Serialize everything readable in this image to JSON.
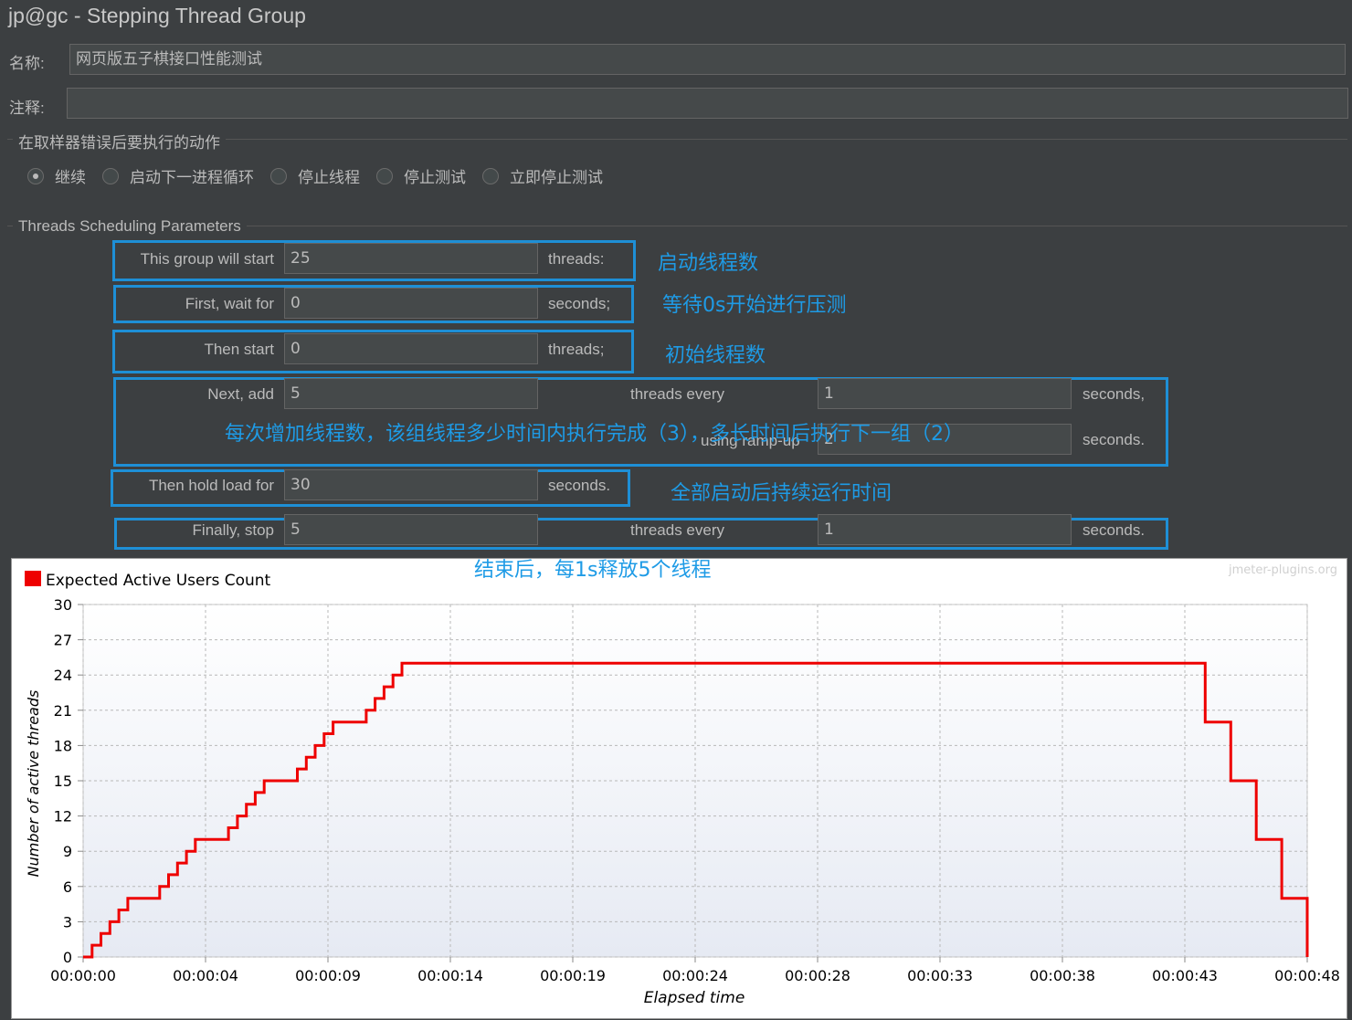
{
  "window": {
    "title": "jp@gc - Stepping Thread Group"
  },
  "name_field": {
    "label": "名称:",
    "value": "网页版五子棋接口性能测试"
  },
  "comment_field": {
    "label": "注释:",
    "value": ""
  },
  "error_action": {
    "title": "在取样器错误后要执行的动作",
    "options": [
      "继续",
      "启动下一进程循环",
      "停止线程",
      "停止测试",
      "立即停止测试"
    ],
    "selected": "继续"
  },
  "params": {
    "title": "Threads Scheduling Parameters",
    "start_threads": {
      "label": "This group will start",
      "value": "25",
      "suffix": "threads:"
    },
    "initial_delay": {
      "label": "First, wait for",
      "value": "0",
      "suffix": "seconds;"
    },
    "start_users": {
      "label": "Then start",
      "value": "0",
      "suffix": "threads;"
    },
    "increment": {
      "label": "Next, add",
      "value": "5",
      "mid": "threads every",
      "value2": "1",
      "suffix": "seconds,"
    },
    "ramp_up": {
      "label": "using ramp-up",
      "value": "2",
      "suffix": "seconds."
    },
    "flight_time": {
      "label": "Then hold load for",
      "value": "30",
      "suffix": "seconds."
    },
    "rampdown": {
      "label": "Finally, stop",
      "value": "5",
      "mid": "threads every",
      "value2": "1",
      "suffix": "seconds."
    }
  },
  "annotations": {
    "a1": "启动线程数",
    "a2": "等待0s开始进行压测",
    "a3": "初始线程数",
    "a4": "每次增加线程数，该组线程多少时间内执行完成（3），多长时间后执行下一组（2）",
    "a5": "全部启动后持续运行时间",
    "a6": "结束后，每1s释放5个线程"
  },
  "colors": {
    "highlight": "#1e8fd6",
    "annotation": "#1e9be6",
    "series": "#ee0000"
  },
  "chart_data": {
    "type": "line",
    "watermark": "jmeter-plugins.org",
    "legend": "Expected Active Users Count",
    "xlabel": "Elapsed time",
    "ylabel": "Number of active threads",
    "ylim": [
      0,
      30
    ],
    "yticks": [
      0,
      3,
      6,
      9,
      12,
      15,
      18,
      21,
      24,
      27,
      30
    ],
    "xlim": [
      0,
      48
    ],
    "xtick_labels": [
      "00:00:00",
      "00:00:04",
      "00:00:09",
      "00:00:14",
      "00:00:19",
      "00:00:24",
      "00:00:28",
      "00:00:33",
      "00:00:38",
      "00:00:43",
      "00:00:48"
    ],
    "series": [
      {
        "name": "Expected Active Users Count",
        "color": "#ee0000",
        "x": [
          0,
          0.35,
          0.35,
          0.7,
          0.7,
          1.05,
          1.05,
          1.4,
          1.4,
          1.75,
          1.75,
          3.0,
          3.0,
          3.35,
          3.35,
          3.7,
          3.7,
          4.05,
          4.05,
          4.4,
          4.4,
          5.7,
          5.7,
          6.05,
          6.05,
          6.4,
          6.4,
          6.75,
          6.75,
          7.1,
          7.1,
          8.4,
          8.4,
          8.75,
          8.75,
          9.1,
          9.1,
          9.45,
          9.45,
          9.8,
          9.8,
          11.1,
          11.1,
          11.45,
          11.45,
          11.8,
          11.8,
          12.15,
          12.15,
          12.5,
          12.5,
          12.9,
          12.9,
          44.0,
          44.0,
          45.0,
          45.0,
          46.0,
          46.0,
          47.0,
          47.0,
          48.0,
          48.0
        ],
        "y": [
          0,
          0,
          1,
          1,
          2,
          2,
          3,
          3,
          4,
          4,
          5,
          5,
          6,
          6,
          7,
          7,
          8,
          8,
          9,
          9,
          10,
          10,
          11,
          11,
          12,
          12,
          13,
          13,
          14,
          14,
          15,
          15,
          16,
          16,
          17,
          17,
          18,
          18,
          19,
          19,
          20,
          20,
          21,
          21,
          22,
          22,
          23,
          23,
          24,
          24,
          25,
          25,
          25,
          25,
          20,
          20,
          15,
          15,
          10,
          10,
          5,
          5,
          0
        ]
      }
    ]
  }
}
